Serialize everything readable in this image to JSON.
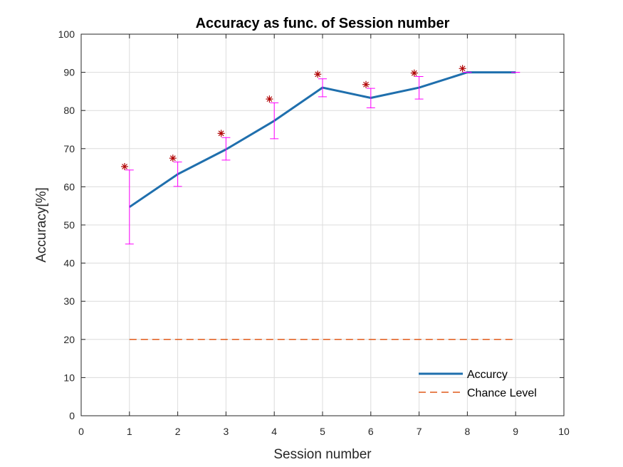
{
  "chart_data": {
    "type": "line",
    "title": "Accuracy as func. of Session number",
    "xlabel": "Session number",
    "ylabel": "Accuracy[%]",
    "xlim": [
      0,
      10
    ],
    "ylim": [
      0,
      100
    ],
    "xticks": [
      "0",
      "1",
      "2",
      "3",
      "4",
      "5",
      "6",
      "7",
      "8",
      "9",
      "10"
    ],
    "yticks": [
      "0",
      "10",
      "20",
      "30",
      "40",
      "50",
      "60",
      "70",
      "80",
      "90",
      "100"
    ],
    "grid": true,
    "legend_position": "bottom-right",
    "series": [
      {
        "name": "Accurcy",
        "style": "solid",
        "color": "#1f6fad",
        "x": [
          1,
          2,
          3,
          4,
          5,
          6,
          7,
          8,
          9
        ],
        "y": [
          54.7,
          63.3,
          69.8,
          77.3,
          86.0,
          83.3,
          86.0,
          90.0,
          90.0
        ]
      },
      {
        "name": "Chance Level",
        "style": "dashed",
        "color": "#e05a1a",
        "x": [
          1,
          9
        ],
        "y": [
          20,
          20
        ]
      }
    ],
    "error_bars": {
      "color": "#ff00ff",
      "x": [
        1,
        2,
        3,
        4,
        5,
        6,
        7,
        8,
        9
      ],
      "lower": [
        45.0,
        60.1,
        67.0,
        72.6,
        83.6,
        80.7,
        83.0,
        90.0,
        90.0
      ],
      "upper": [
        64.4,
        66.5,
        72.9,
        82.0,
        88.3,
        85.8,
        88.9,
        90.0,
        90.0
      ]
    },
    "markers": {
      "symbol": "asterisk",
      "color": "#b00000",
      "x": [
        0.9,
        1.9,
        2.9,
        3.9,
        4.9,
        5.9,
        6.9,
        7.9
      ],
      "y": [
        65.3,
        67.5,
        74.0,
        83.0,
        89.5,
        86.8,
        89.8,
        91.0
      ]
    }
  }
}
